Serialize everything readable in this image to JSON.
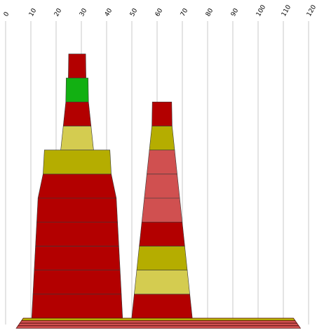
{
  "chart_data": {
    "type": "bar",
    "title": "",
    "xlabel": "",
    "ylabel": "",
    "xlim": [
      0,
      120
    ],
    "x_ticks": [
      "0",
      "10",
      "20",
      "30",
      "40",
      "50",
      "60",
      "70",
      "80",
      "90",
      "100",
      "110",
      "120"
    ],
    "grid": true,
    "stacks": [
      {
        "segments": [
          {
            "width": 36,
            "color": "#b30000"
          },
          {
            "width": 35,
            "color": "#b30000"
          },
          {
            "width": 34,
            "color": "#b30000"
          },
          {
            "width": 33,
            "color": "#b30000"
          },
          {
            "width": 32,
            "color": "#b30000"
          },
          {
            "width": 31,
            "color": "#b30000"
          },
          {
            "width": 27,
            "color": "#b5ad00"
          },
          {
            "width": 13,
            "color": "#d4cc50"
          },
          {
            "width": 11,
            "color": "#b30000"
          },
          {
            "width": 9,
            "color": "#12b012"
          },
          {
            "width": 7,
            "color": "#b30000"
          }
        ]
      },
      {
        "segments": [
          {
            "width": 24,
            "color": "#b30000"
          },
          {
            "width": 22,
            "color": "#d4cc50"
          },
          {
            "width": 20,
            "color": "#b5ad00"
          },
          {
            "width": 18,
            "color": "#b30000"
          },
          {
            "width": 16,
            "color": "#d05050"
          },
          {
            "width": 14,
            "color": "#d05050"
          },
          {
            "width": 12,
            "color": "#d05050"
          },
          {
            "width": 10,
            "color": "#b5ad00"
          },
          {
            "width": 8,
            "color": "#b30000"
          }
        ]
      }
    ],
    "base": {
      "from": 7,
      "to": 114,
      "colors": [
        "#b5ad00",
        "#d05050",
        "#d05050",
        "#d05050"
      ]
    }
  }
}
